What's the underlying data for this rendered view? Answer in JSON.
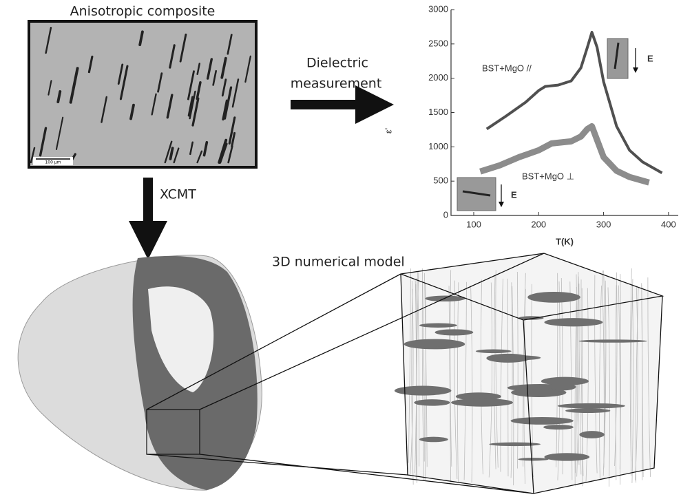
{
  "labels": {
    "composite": "Anisotropic composite",
    "scale_bar": "100 µm",
    "measurement_line1": "Dielectric",
    "measurement_line2": "measurement",
    "xcmt": "XCMT",
    "model": "3D numerical model",
    "field_top": "E",
    "field_bottom": "E"
  },
  "chart_data": {
    "type": "line",
    "xlabel": "T(K)",
    "ylabel": "ε'",
    "xlim": [
      65,
      415
    ],
    "xticks": [
      100,
      200,
      300,
      400
    ],
    "ylim": [
      0,
      3000
    ],
    "yticks": [
      0,
      500,
      1000,
      1500,
      2000,
      2500,
      3000
    ],
    "series": [
      {
        "name": "BST+MgO //",
        "color": "#505050",
        "width": 4,
        "x": [
          120,
          150,
          180,
          200,
          210,
          230,
          250,
          265,
          275,
          282,
          290,
          300,
          320,
          340,
          360,
          390
        ],
        "values": [
          1260,
          1450,
          1650,
          1820,
          1880,
          1900,
          1960,
          2150,
          2450,
          2670,
          2450,
          1950,
          1300,
          950,
          780,
          620
        ]
      },
      {
        "name": "BST+MgO ⊥",
        "color": "#8c8c8c",
        "width": 9,
        "x": [
          110,
          140,
          170,
          200,
          220,
          250,
          265,
          275,
          282,
          290,
          300,
          320,
          340,
          370
        ],
        "values": [
          640,
          730,
          850,
          950,
          1050,
          1080,
          1150,
          1260,
          1300,
          1100,
          850,
          650,
          560,
          480
        ]
      }
    ]
  }
}
